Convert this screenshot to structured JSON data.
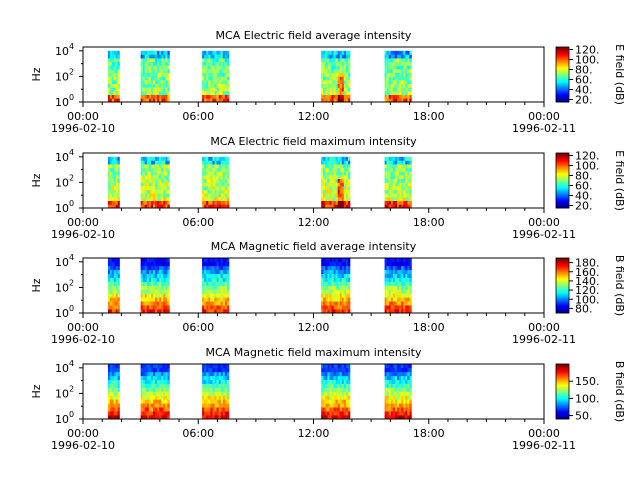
{
  "figure": {
    "date_start": "1996-02-10",
    "date_end": "1996-02-11"
  },
  "chart_data": [
    {
      "type": "heatmap",
      "title": "MCA  Electric field average intensity",
      "ylabel": "Hz",
      "xlabel": "",
      "x_ticks": [
        "00:00",
        "06:00",
        "12:00",
        "18:00",
        "00:00"
      ],
      "x_range_hours": [
        0,
        24
      ],
      "y_scale": "log",
      "y_ticks": [
        "10^0",
        "10^2",
        "10^4"
      ],
      "y_range_log10": [
        0,
        4.3
      ],
      "colorbar": {
        "label": "E field (dB)",
        "range": [
          15,
          125
        ],
        "ticks": [
          20,
          40,
          60,
          80,
          100,
          120
        ],
        "tick_labels": [
          "20.",
          "40.",
          "60.",
          "80.",
          "100.",
          "120."
        ]
      },
      "data_intervals_hours": [
        [
          1.3,
          1.9
        ],
        [
          3.0,
          4.5
        ],
        [
          6.2,
          7.6
        ],
        [
          12.4,
          13.9
        ],
        [
          15.7,
          17.1
        ]
      ],
      "field": "electric",
      "colormap": "jet"
    },
    {
      "type": "heatmap",
      "title": "MCA  Electric field maximum intensity",
      "ylabel": "Hz",
      "xlabel": "",
      "x_ticks": [
        "00:00",
        "06:00",
        "12:00",
        "18:00",
        "00:00"
      ],
      "x_range_hours": [
        0,
        24
      ],
      "y_scale": "log",
      "y_ticks": [
        "10^0",
        "10^2",
        "10^4"
      ],
      "y_range_log10": [
        0,
        4.3
      ],
      "colorbar": {
        "label": "E field (dB)",
        "range": [
          15,
          125
        ],
        "ticks": [
          20,
          40,
          60,
          80,
          100,
          120
        ],
        "tick_labels": [
          "20.",
          "40.",
          "60.",
          "80.",
          "100.",
          "120."
        ]
      },
      "data_intervals_hours": [
        [
          1.3,
          1.9
        ],
        [
          3.0,
          4.5
        ],
        [
          6.2,
          7.6
        ],
        [
          12.4,
          13.9
        ],
        [
          15.7,
          17.1
        ]
      ],
      "field": "electric",
      "colormap": "jet"
    },
    {
      "type": "heatmap",
      "title": "MCA  Magnetic field average intensity",
      "ylabel": "Hz",
      "xlabel": "",
      "x_ticks": [
        "00:00",
        "06:00",
        "12:00",
        "18:00",
        "00:00"
      ],
      "x_range_hours": [
        0,
        24
      ],
      "y_scale": "log",
      "y_ticks": [
        "10^0",
        "10^2",
        "10^4"
      ],
      "y_range_log10": [
        0,
        4.3
      ],
      "colorbar": {
        "label": "B field (dB)",
        "range": [
          70,
          190
        ],
        "ticks": [
          80,
          100,
          120,
          140,
          160,
          180
        ],
        "tick_labels": [
          "80.",
          "100.",
          "120.",
          "140.",
          "160.",
          "180."
        ]
      },
      "data_intervals_hours": [
        [
          1.3,
          1.9
        ],
        [
          3.0,
          4.5
        ],
        [
          6.2,
          7.6
        ],
        [
          12.4,
          13.9
        ],
        [
          15.7,
          17.1
        ]
      ],
      "field": "magnetic",
      "colormap": "jet"
    },
    {
      "type": "heatmap",
      "title": "MCA  Magnetic field maximum intensity",
      "ylabel": "Hz",
      "xlabel": "",
      "x_ticks": [
        "00:00",
        "06:00",
        "12:00",
        "18:00",
        "00:00"
      ],
      "x_range_hours": [
        0,
        24
      ],
      "y_scale": "log",
      "y_ticks": [
        "10^0",
        "10^2",
        "10^4"
      ],
      "y_range_log10": [
        0,
        4.3
      ],
      "colorbar": {
        "label": "B field (dB)",
        "range": [
          40,
          200
        ],
        "ticks": [
          50,
          100,
          150
        ],
        "tick_labels": [
          "50.",
          "100.",
          "150."
        ]
      },
      "data_intervals_hours": [
        [
          1.3,
          1.9
        ],
        [
          3.0,
          4.5
        ],
        [
          6.2,
          7.6
        ],
        [
          12.4,
          13.9
        ],
        [
          15.7,
          17.1
        ]
      ],
      "field": "magnetic",
      "colormap": "jet"
    }
  ]
}
